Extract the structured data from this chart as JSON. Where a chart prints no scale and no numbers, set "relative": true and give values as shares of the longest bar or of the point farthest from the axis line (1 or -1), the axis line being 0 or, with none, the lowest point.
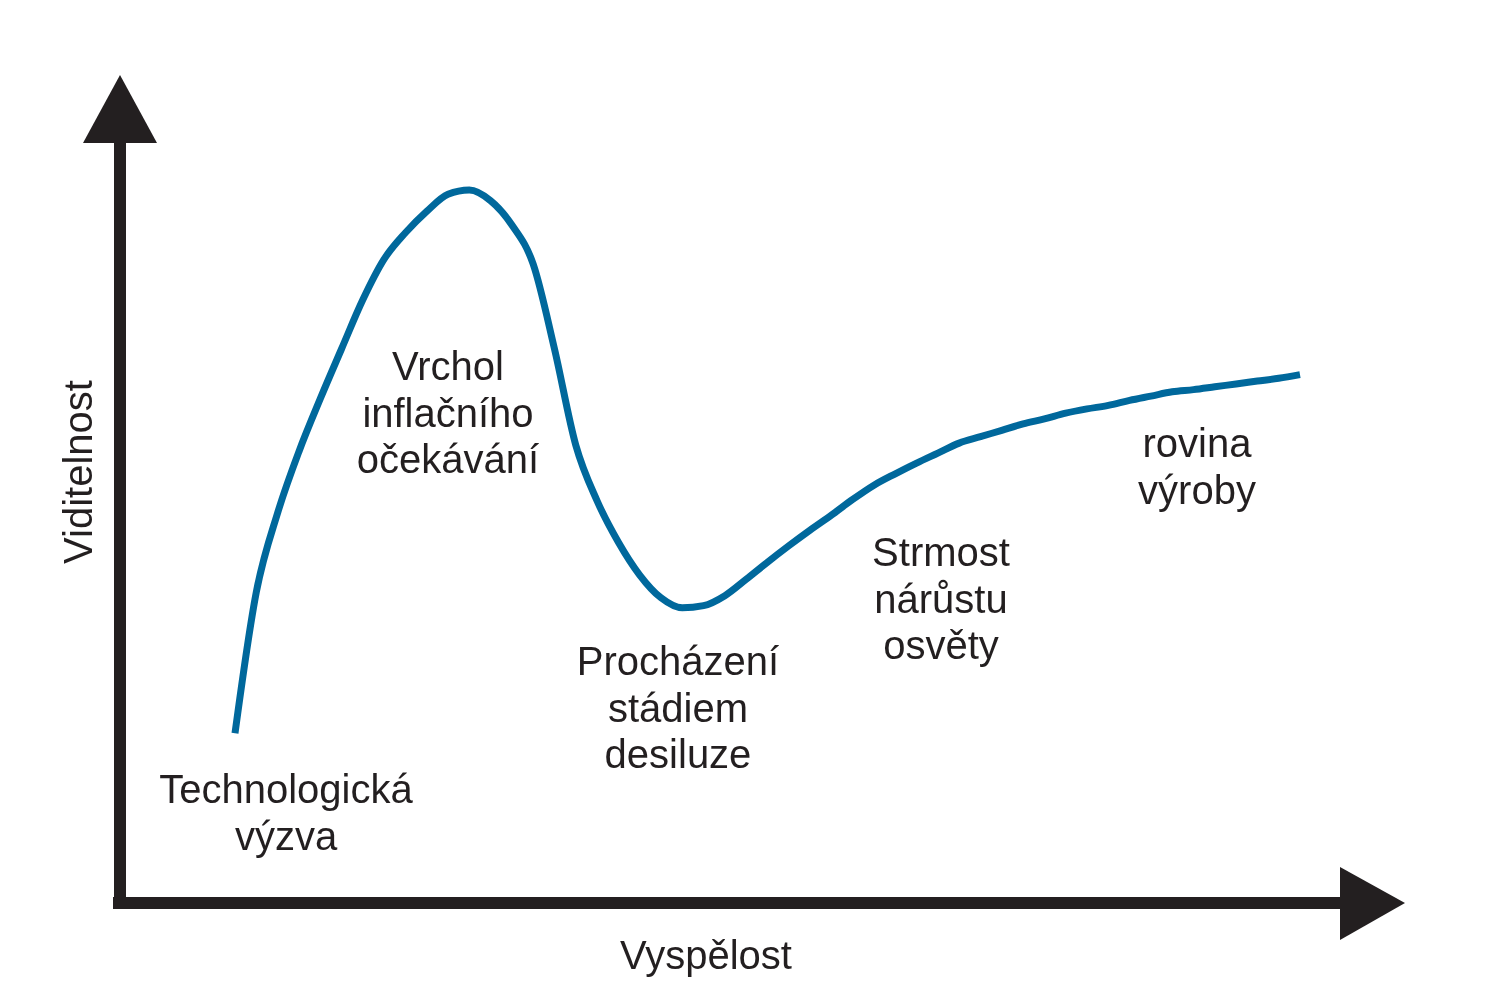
{
  "chart_data": {
    "type": "line",
    "relative": true,
    "xlabel": "Vyspělost",
    "ylabel": "Viditelnost",
    "categories": [
      null,
      null,
      null,
      null,
      null,
      null,
      null,
      null,
      null,
      null,
      null,
      null,
      null,
      null,
      null,
      null,
      null,
      null,
      null,
      null,
      null,
      null,
      null,
      null,
      null,
      null,
      null,
      null,
      null,
      null,
      null,
      null,
      null,
      null,
      null,
      null,
      null,
      null,
      null,
      null,
      null,
      null,
      null,
      null,
      null,
      null,
      null,
      null,
      null,
      null,
      null
    ],
    "color": "#00689c",
    "values": [
      0.238,
      0.436,
      0.547,
      0.633,
      0.707,
      0.777,
      0.846,
      0.903,
      0.94,
      0.97,
      0.994,
      1.0,
      0.985,
      0.951,
      0.896,
      0.777,
      0.642,
      0.564,
      0.506,
      0.46,
      0.428,
      0.414,
      0.417,
      0.431,
      0.454,
      0.478,
      0.501,
      0.523,
      0.544,
      0.566,
      0.586,
      0.602,
      0.617,
      0.631,
      0.645,
      0.654,
      0.663,
      0.672,
      0.679,
      0.687,
      0.693,
      0.698,
      0.705,
      0.711,
      0.717,
      0.72,
      0.724,
      0.728,
      0.732,
      0.736,
      0.741
    ],
    "annotations": [
      "Technologická\nvýzva",
      "Vrchol\ninflačního\nočekávání",
      "Procházení\nstádiem\ndesiluze",
      "Strmost\nnárůstu\nosvěty",
      "rovina\nvýroby"
    ]
  }
}
